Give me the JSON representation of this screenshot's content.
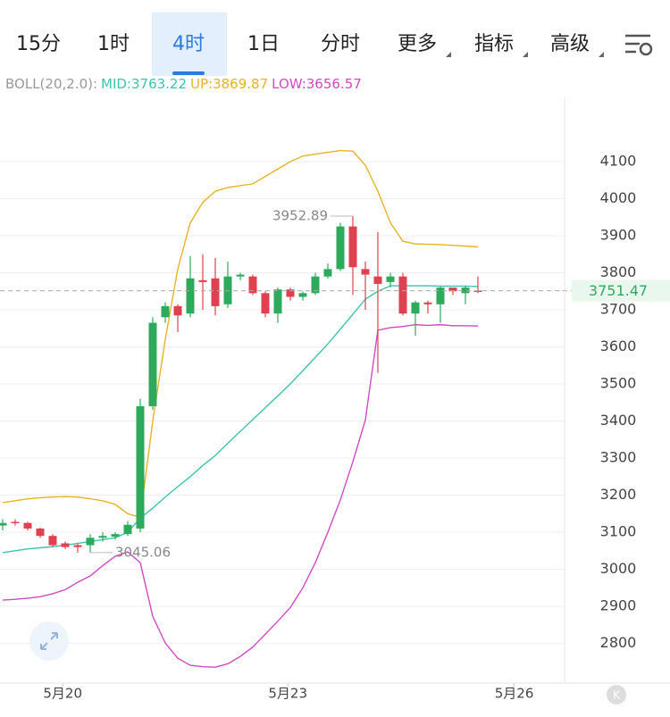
{
  "tabs": [
    "15分",
    "1时",
    "4时",
    "1日",
    "分时",
    "更多",
    "指标",
    "高级"
  ],
  "active_tab": 2,
  "chart_data": {
    "type": "candlestick",
    "x": [
      0,
      1,
      2,
      3,
      4,
      5,
      6,
      7,
      8,
      9,
      10,
      11,
      12,
      13,
      14,
      15,
      16,
      17,
      18,
      19,
      20,
      21,
      22,
      23,
      24,
      25,
      26,
      27,
      28,
      29,
      30,
      31,
      32,
      33,
      34,
      35,
      36,
      37,
      38
    ],
    "open": [
      3118,
      3128,
      3125,
      3110,
      3090,
      3070,
      3065,
      3065,
      3085,
      3088,
      3095,
      3110,
      3440,
      3680,
      3710,
      3690,
      3780,
      3785,
      3715,
      3790,
      3790,
      3745,
      3690,
      3755,
      3735,
      3745,
      3790,
      3810,
      3925,
      3810,
      3790,
      3775,
      3790,
      3690,
      3720,
      3715,
      3760,
      3745,
      3752
    ],
    "close": [
      3125,
      3125,
      3110,
      3090,
      3065,
      3060,
      3060,
      3085,
      3090,
      3095,
      3120,
      3440,
      3665,
      3710,
      3685,
      3785,
      3775,
      3710,
      3790,
      3795,
      3745,
      3690,
      3755,
      3735,
      3745,
      3790,
      3810,
      3925,
      3815,
      3795,
      3770,
      3790,
      3690,
      3720,
      3715,
      3760,
      3750,
      3760,
      3751.47
    ],
    "high": [
      3135,
      3135,
      3128,
      3112,
      3095,
      3075,
      3070,
      3095,
      3100,
      3100,
      3130,
      3460,
      3680,
      3720,
      3715,
      3845,
      3850,
      3840,
      3830,
      3800,
      3795,
      3750,
      3760,
      3760,
      3750,
      3800,
      3825,
      3935,
      3952.89,
      3830,
      3910,
      3800,
      3800,
      3725,
      3725,
      3765,
      3760,
      3765,
      3790
    ],
    "low": [
      3105,
      3118,
      3105,
      3085,
      3060,
      3055,
      3045,
      3045.06,
      3075,
      3080,
      3090,
      3100,
      3430,
      3665,
      3640,
      3680,
      3700,
      3685,
      3705,
      3780,
      3740,
      3680,
      3665,
      3725,
      3725,
      3740,
      3785,
      3805,
      3740,
      3700,
      3530,
      3760,
      3685,
      3630,
      3690,
      3665,
      3740,
      3715,
      3745
    ],
    "up_color": "#2eaa5e",
    "down_color": "#e0404f",
    "indicator": {
      "label": "BOLL(20,2.0):",
      "series": [
        {
          "name": "MID",
          "last_label": "MID:3763.22",
          "color": "#3cc4b0",
          "values": [
            3045,
            3050,
            3055,
            3058,
            3061,
            3065,
            3070,
            3075,
            3080,
            3085,
            3100,
            3138,
            3165,
            3195,
            3223,
            3250,
            3280,
            3307,
            3340,
            3372,
            3404,
            3436,
            3468,
            3500,
            3536,
            3572,
            3608,
            3648,
            3688,
            3729,
            3750,
            3765,
            3765,
            3765,
            3765,
            3764,
            3764,
            3764,
            3763.22
          ]
        },
        {
          "name": "UP",
          "last_label": "UP:3869.87",
          "color": "#e6b422",
          "values": [
            3180,
            3185,
            3190,
            3193,
            3195,
            3196,
            3195,
            3190,
            3185,
            3175,
            3150,
            3140,
            3400,
            3620,
            3810,
            3935,
            3990,
            4020,
            4030,
            4035,
            4040,
            4060,
            4080,
            4100,
            4115,
            4120,
            4125,
            4130,
            4128,
            4090,
            4020,
            3935,
            3885,
            3878,
            3877,
            3876,
            3874,
            3872,
            3869.87
          ]
        },
        {
          "name": "LOW",
          "last_label": "LOW:3656.57",
          "color": "#d04ac0",
          "values": [
            2917,
            2919,
            2922,
            2926,
            2934,
            2945,
            2965,
            2982,
            3010,
            3035,
            3047,
            3018,
            2873,
            2801,
            2760,
            2741,
            2737,
            2736,
            2745,
            2765,
            2790,
            2825,
            2860,
            2897,
            2950,
            3018,
            3100,
            3187,
            3290,
            3403,
            3645,
            3652,
            3655,
            3660,
            3658,
            3660,
            3657,
            3657,
            3656.57
          ]
        }
      ]
    },
    "annotations": [
      {
        "x": 28,
        "y": 3952.89
      },
      {
        "x": 7,
        "y": 3045.06
      }
    ],
    "last_price": 3751.47,
    "xlim": [
      -0.214,
      44.93
    ],
    "xticks": [
      {
        "value": 4.8,
        "label": "5月20"
      },
      {
        "value": 22.8,
        "label": "5月23"
      },
      {
        "value": 40.9,
        "label": "5月26"
      }
    ],
    "ylim": [
      2693,
      4271
    ],
    "yticks": [
      2800,
      2900,
      3000,
      3100,
      3200,
      3300,
      3400,
      3500,
      3600,
      3700,
      3800,
      3900,
      4000,
      4100
    ],
    "grid": true
  }
}
